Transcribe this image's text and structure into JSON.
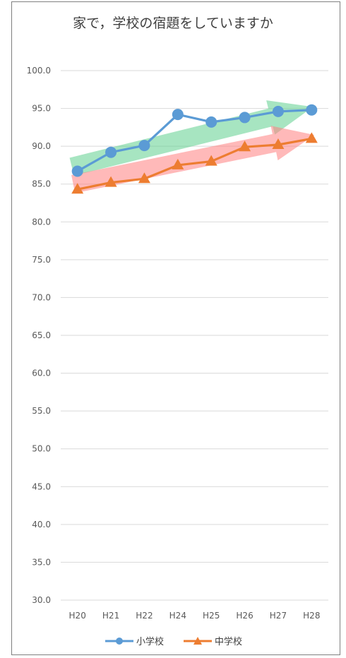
{
  "chart_data": {
    "type": "line",
    "title": "家で，学校の宿題をしていますか",
    "categories": [
      "H20",
      "H21",
      "H22",
      "H24",
      "H25",
      "H26",
      "H27",
      "H28"
    ],
    "ylim": [
      30.0,
      100.0
    ],
    "yticks": [
      "30.0",
      "35.0",
      "40.0",
      "45.0",
      "50.0",
      "55.0",
      "60.0",
      "65.0",
      "70.0",
      "75.0",
      "80.0",
      "85.0",
      "90.0",
      "95.0",
      "100.0"
    ],
    "grid": true,
    "legend_position": "bottom",
    "series": [
      {
        "name": "小学校",
        "values": [
          86.7,
          89.2,
          90.1,
          94.2,
          93.2,
          93.8,
          94.6,
          94.8
        ],
        "color": "#5b9bd5",
        "marker": "circle"
      },
      {
        "name": "中学校",
        "values": [
          84.3,
          85.2,
          85.7,
          87.5,
          88.0,
          89.9,
          90.2,
          91.0
        ],
        "color": "#ed7d31",
        "marker": "triangle"
      }
    ],
    "annotations": [
      {
        "type": "trend-arrow",
        "color": "#5fcf8e"
      },
      {
        "type": "trend-arrow",
        "color": "#ff7f7f"
      }
    ]
  }
}
